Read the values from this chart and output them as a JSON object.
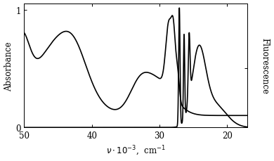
{
  "ylabel_left": "Absorbance",
  "ylabel_right": "Fluorescence",
  "xlim": [
    50,
    17
  ],
  "ylim": [
    0,
    1.05
  ],
  "xticks": [
    50,
    40,
    30,
    20
  ],
  "yticks_left": [
    0,
    1
  ],
  "background_color": "#ffffff",
  "line_color": "#000000",
  "linewidth": 1.2
}
